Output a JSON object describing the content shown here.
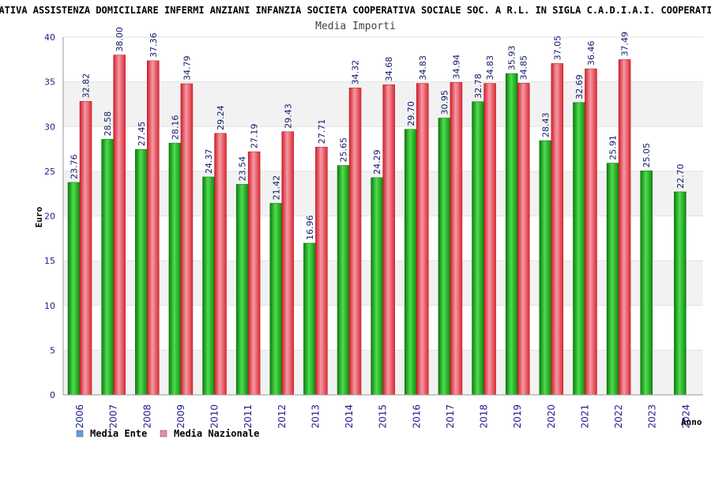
{
  "chart_data": {
    "type": "bar",
    "title": "…ERATIVA ASSISTENZA DOMICILIARE INFERMI ANZIANI INFANZIA SOCIETA COOPERATIVA SOCIALE SOC. A R.L. IN SIGLA C.A.D.I.A.I. COOPERATIVA…",
    "subtitle": "Media Importi",
    "xlabel": "Anno",
    "ylabel": "Euro",
    "ylim": [
      0,
      40
    ],
    "yticks": [
      0,
      5,
      10,
      15,
      20,
      25,
      30,
      35,
      40
    ],
    "grid": true,
    "legend_placement": "bottom-left",
    "categories": [
      "2006",
      "2007",
      "2008",
      "2009",
      "2010",
      "2011",
      "2012",
      "2013",
      "2014",
      "2015",
      "2016",
      "2017",
      "2018",
      "2019",
      "2020",
      "2021",
      "2022",
      "2023",
      "2024"
    ],
    "series": [
      {
        "name": "Media Ente",
        "color": "#1aa51a",
        "legend_color": "#5b9ee6",
        "values": [
          23.76,
          28.58,
          27.45,
          28.16,
          24.37,
          23.54,
          21.42,
          16.96,
          25.65,
          24.29,
          29.7,
          30.95,
          32.78,
          35.93,
          28.43,
          32.69,
          25.91,
          25.05,
          22.7
        ],
        "labels": [
          "23.76",
          "28.58",
          "27.45",
          "28.16",
          "24.37",
          "23.54",
          "21.42",
          "16.96",
          "25.65",
          "24.29",
          "29.70",
          "30.95",
          "32.78",
          "35.93",
          "28.43",
          "32.69",
          "25.91",
          "25.05",
          "22.70"
        ]
      },
      {
        "name": "Media Nazionale",
        "color": "#e8313a",
        "legend_color": "#e889b3",
        "values": [
          32.82,
          38.0,
          37.36,
          34.79,
          29.24,
          27.19,
          29.43,
          27.71,
          34.32,
          34.68,
          34.83,
          34.94,
          34.83,
          34.85,
          37.05,
          36.46,
          37.49,
          null,
          null
        ],
        "labels": [
          "32.82",
          "38.00",
          "37.36",
          "34.79",
          "29.24",
          "27.19",
          "29.43",
          "27.71",
          "34.32",
          "34.68",
          "34.83",
          "34.94",
          "34.83",
          "34.85",
          "37.05",
          "36.46",
          "37.49",
          null,
          null
        ]
      }
    ]
  }
}
